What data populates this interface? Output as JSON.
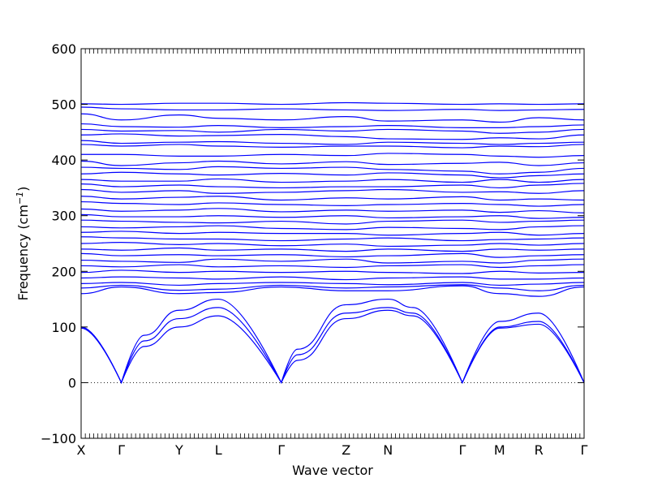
{
  "chart_data": {
    "type": "line",
    "xlabel": "Wave vector",
    "ylabel": "Frequency (cm",
    "ylabel_sup": "−1",
    "ylabel_close": ")",
    "ylim": [
      -100,
      600
    ],
    "yticks": [
      -100,
      0,
      100,
      200,
      300,
      400,
      500,
      600
    ],
    "ytick_labels": [
      "−100",
      "0",
      "100",
      "200",
      "300",
      "400",
      "500",
      "600"
    ],
    "grid": false,
    "reference_line": {
      "y": 0,
      "style": "dotted"
    },
    "line_color": "#0000ff",
    "high_symmetry_points": [
      {
        "label": "X",
        "x": 0
      },
      {
        "label": "Γ",
        "x": 0.08
      },
      {
        "label": "Y",
        "x": 0.195
      },
      {
        "label": "L",
        "x": 0.273
      },
      {
        "label": "Γ",
        "x": 0.398
      },
      {
        "label": "Z",
        "x": 0.527
      },
      {
        "label": "N",
        "x": 0.61
      },
      {
        "label": "Γ",
        "x": 0.758
      },
      {
        "label": "M",
        "x": 0.832
      },
      {
        "label": "R",
        "x": 0.91
      },
      {
        "label": "Γ",
        "x": 1.0
      }
    ],
    "flat_bands": [
      {
        "y": [
          501,
          500,
          502,
          502,
          500,
          503,
          502,
          500,
          501,
          500,
          501
        ]
      },
      {
        "y": [
          495,
          492,
          490,
          490,
          492,
          490,
          489,
          491,
          489,
          490,
          491
        ]
      },
      {
        "y": [
          483,
          472,
          481,
          475,
          472,
          478,
          470,
          472,
          468,
          476,
          472
        ]
      },
      {
        "y": [
          465,
          460,
          459,
          462,
          458,
          460,
          462,
          458,
          458,
          460,
          463
        ]
      },
      {
        "y": [
          455,
          452,
          453,
          450,
          455,
          452,
          455,
          452,
          448,
          450,
          455
        ]
      },
      {
        "y": [
          445,
          447,
          443,
          444,
          446,
          442,
          438,
          437,
          440,
          438,
          445
        ]
      },
      {
        "y": [
          435,
          430,
          432,
          433,
          430,
          428,
          432,
          430,
          428,
          430,
          432
        ]
      },
      {
        "y": [
          428,
          425,
          428,
          425,
          423,
          425,
          425,
          422,
          425,
          424,
          428
        ]
      },
      {
        "y": [
          410,
          410,
          407,
          407,
          410,
          408,
          412,
          410,
          407,
          405,
          408
        ]
      },
      {
        "y": [
          398,
          390,
          395,
          398,
          393,
          397,
          392,
          394,
          396,
          390,
          395
        ]
      },
      {
        "y": [
          387,
          385,
          383,
          388,
          385,
          387,
          383,
          380,
          375,
          378,
          385
        ]
      },
      {
        "y": [
          375,
          378,
          375,
          373,
          376,
          373,
          377,
          373,
          368,
          372,
          375
        ]
      },
      {
        "y": [
          365,
          362,
          362,
          366,
          360,
          362,
          365,
          360,
          365,
          360,
          365
        ]
      },
      {
        "y": [
          357,
          352,
          355,
          352,
          350,
          352,
          352,
          355,
          350,
          355,
          358
        ]
      },
      {
        "y": [
          347,
          342,
          345,
          340,
          342,
          345,
          347,
          342,
          343,
          340,
          345
        ]
      },
      {
        "y": [
          335,
          330,
          333,
          335,
          328,
          332,
          330,
          334,
          328,
          330,
          328
        ]
      },
      {
        "y": [
          325,
          322,
          320,
          323,
          320,
          318,
          320,
          322,
          320,
          317,
          320
        ]
      },
      {
        "y": [
          312,
          308,
          310,
          313,
          307,
          310,
          308,
          310,
          306,
          309,
          305
        ]
      },
      {
        "y": [
          302,
          298,
          298,
          300,
          297,
          300,
          296,
          298,
          300,
          295,
          297
        ]
      },
      {
        "y": [
          292,
          290,
          288,
          287,
          290,
          285,
          290,
          292,
          288,
          290,
          292
        ]
      },
      {
        "y": [
          280,
          278,
          280,
          282,
          277,
          275,
          279,
          277,
          275,
          280,
          282
        ]
      },
      {
        "y": [
          270,
          272,
          268,
          270,
          268,
          268,
          265,
          268,
          270,
          265,
          268
        ]
      },
      {
        "y": [
          262,
          260,
          258,
          258,
          255,
          258,
          260,
          255,
          257,
          258,
          260
        ]
      },
      {
        "y": [
          250,
          252,
          248,
          250,
          246,
          249,
          245,
          247,
          250,
          247,
          250
        ]
      },
      {
        "y": [
          240,
          238,
          242,
          238,
          240,
          236,
          240,
          236,
          240,
          238,
          240
        ]
      },
      {
        "y": [
          232,
          228,
          230,
          228,
          230,
          226,
          228,
          232,
          225,
          228,
          230
        ]
      },
      {
        "y": [
          220,
          218,
          216,
          222,
          218,
          222,
          215,
          218,
          215,
          220,
          222
        ]
      },
      {
        "y": [
          210,
          208,
          212,
          208,
          210,
          207,
          210,
          212,
          207,
          210,
          212
        ]
      },
      {
        "y": [
          198,
          202,
          198,
          200,
          198,
          200,
          198,
          196,
          200,
          197,
          198
        ]
      },
      {
        "y": [
          188,
          190,
          188,
          186,
          190,
          185,
          188,
          190,
          186,
          186,
          188
        ]
      },
      {
        "y": [
          178,
          180,
          175,
          178,
          180,
          178,
          176,
          180,
          175,
          177,
          180
        ]
      },
      {
        "y": [
          170,
          175,
          166,
          168,
          175,
          170,
          172,
          176,
          170,
          165,
          175
        ]
      },
      {
        "y": [
          160,
          172,
          160,
          162,
          172,
          165,
          165,
          174,
          160,
          155,
          172
        ]
      }
    ],
    "acoustic_branches": [
      {
        "x": [
          0,
          0.08,
          0.125,
          0.195,
          0.273,
          0.398,
          0.43,
          0.527,
          0.61,
          0.66,
          0.758,
          0.832,
          0.91,
          1.0
        ],
        "y": [
          100,
          0,
          85,
          130,
          150,
          0,
          60,
          140,
          150,
          135,
          0,
          110,
          125,
          0
        ]
      },
      {
        "x": [
          0,
          0.08,
          0.125,
          0.195,
          0.273,
          0.398,
          0.43,
          0.527,
          0.61,
          0.66,
          0.758,
          0.832,
          0.91,
          1.0
        ],
        "y": [
          98,
          0,
          75,
          115,
          135,
          0,
          50,
          125,
          135,
          125,
          0,
          100,
          110,
          0
        ]
      },
      {
        "x": [
          0,
          0.08,
          0.125,
          0.195,
          0.273,
          0.398,
          0.43,
          0.527,
          0.61,
          0.66,
          0.758,
          0.832,
          0.91,
          1.0
        ],
        "y": [
          100,
          0,
          65,
          100,
          120,
          0,
          40,
          115,
          130,
          120,
          0,
          98,
          105,
          0
        ]
      }
    ]
  }
}
